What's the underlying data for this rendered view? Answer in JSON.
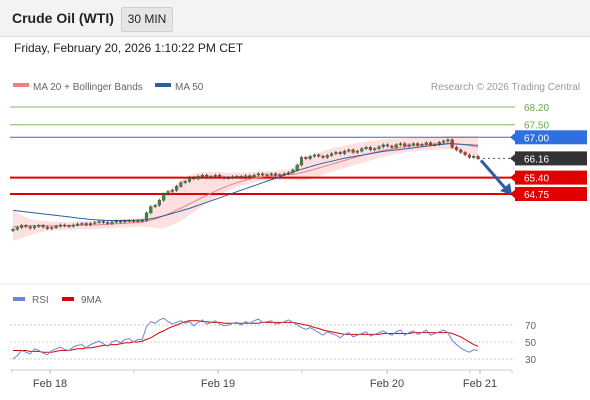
{
  "header": {
    "instrument": "Crude Oil (WTI)",
    "interval": "30 MIN",
    "timestamp": "Friday, February 20, 2026 1:10:22 PM CET"
  },
  "legend": {
    "ma20": "MA 20 + Bollinger Bands",
    "ma50": "MA 50",
    "copyright": "Research © 2026 Trading Central",
    "rsi": "RSI",
    "rsi_ma": "9MA"
  },
  "colors": {
    "candle_up": "#3a8a3a",
    "candle_down": "#c0392b",
    "ma20": "#f08080",
    "bollinger_fill": "#fde0e0",
    "ma50": "#2c5f9e",
    "resistance": "#2f6fe0",
    "support": "#e00000",
    "target": "#7fbf60",
    "current": "#333333",
    "rsi": "#6b85d6",
    "rsi_ma": "#e00000",
    "arrow": "#2c5f9e"
  },
  "chart_data": {
    "type": "candlestick",
    "price_axis": {
      "range": [
        63.3,
        68.65
      ]
    },
    "x_ticks": [
      "Feb 18",
      "Feb 19",
      "Feb 20",
      "Feb 21"
    ],
    "levels": [
      {
        "value": 68.2,
        "label": "68.20",
        "kind": "target"
      },
      {
        "value": 67.5,
        "label": "67.50",
        "kind": "target"
      },
      {
        "value": 67.0,
        "label": "67.00",
        "kind": "resistance"
      },
      {
        "value": 66.16,
        "label": "66.16",
        "kind": "current"
      },
      {
        "value": 65.4,
        "label": "65.40",
        "kind": "support"
      },
      {
        "value": 64.75,
        "label": "64.75",
        "kind": "support"
      }
    ],
    "close": [
      63.35,
      63.42,
      63.5,
      63.45,
      63.4,
      63.46,
      63.5,
      63.44,
      63.38,
      63.42,
      63.47,
      63.52,
      63.49,
      63.47,
      63.52,
      63.56,
      63.58,
      63.53,
      63.58,
      63.62,
      63.66,
      63.62,
      63.58,
      63.64,
      63.67,
      63.64,
      63.68,
      63.7,
      63.66,
      63.7,
      63.7,
      64.0,
      64.25,
      64.3,
      64.5,
      64.75,
      64.85,
      64.9,
      65.05,
      65.2,
      65.25,
      65.4,
      65.35,
      65.45,
      65.5,
      65.4,
      65.45,
      65.5,
      65.42,
      65.38,
      65.4,
      65.44,
      65.45,
      65.4,
      65.47,
      65.45,
      65.5,
      65.55,
      65.5,
      65.52,
      65.55,
      65.5,
      65.52,
      65.55,
      65.6,
      65.7,
      65.9,
      66.2,
      66.15,
      66.25,
      66.3,
      66.25,
      66.2,
      66.28,
      66.35,
      66.4,
      66.35,
      66.45,
      66.5,
      66.4,
      66.45,
      66.55,
      66.6,
      66.5,
      66.55,
      66.62,
      66.7,
      66.65,
      66.6,
      66.7,
      66.75,
      66.65,
      66.7,
      66.75,
      66.68,
      66.72,
      66.78,
      66.7,
      66.72,
      66.8,
      66.85,
      66.9,
      66.6,
      66.5,
      66.4,
      66.3,
      66.2,
      66.25,
      66.16
    ],
    "ma20": [
      63.45,
      63.47,
      63.48,
      63.49,
      63.5,
      63.5,
      63.5,
      63.5,
      63.49,
      63.49,
      63.49,
      63.49,
      63.49,
      63.49,
      63.5,
      63.5,
      63.51,
      63.51,
      63.52,
      63.52,
      63.53,
      63.54,
      63.55,
      63.56,
      63.57,
      63.58,
      63.59,
      63.6,
      63.61,
      63.62,
      63.63,
      63.67,
      63.72,
      63.76,
      63.82,
      63.89,
      63.96,
      64.03,
      64.11,
      64.19,
      64.27,
      64.36,
      64.44,
      64.53,
      64.62,
      64.7,
      64.78,
      64.86,
      64.94,
      65.01,
      65.08,
      65.14,
      65.2,
      65.25,
      65.3,
      65.34,
      65.38,
      65.41,
      65.43,
      65.45,
      65.47,
      65.49,
      65.5,
      65.51,
      65.52,
      65.53,
      65.56,
      65.6,
      65.64,
      65.68,
      65.73,
      65.78,
      65.83,
      65.88,
      65.93,
      65.98,
      66.03,
      66.08,
      66.13,
      66.18,
      66.23,
      66.28,
      66.32,
      66.36,
      66.4,
      66.44,
      66.48,
      66.51,
      66.54,
      66.57,
      66.6,
      66.62,
      66.64,
      66.66,
      66.68,
      66.69,
      66.71,
      66.72,
      66.73,
      66.74,
      66.75,
      66.76,
      66.75,
      66.74,
      66.72,
      66.7,
      66.67,
      66.64,
      66.61
    ],
    "bollinger_upper": [
      64.1,
      64.0,
      63.9,
      63.82,
      63.76,
      63.72,
      63.7,
      63.68,
      63.67,
      63.66,
      63.65,
      63.65,
      63.65,
      63.65,
      63.65,
      63.66,
      63.67,
      63.67,
      63.68,
      63.69,
      63.7,
      63.71,
      63.72,
      63.73,
      63.74,
      63.75,
      63.76,
      63.77,
      63.78,
      63.79,
      63.8,
      63.95,
      64.15,
      64.3,
      64.5,
      64.7,
      64.85,
      65.0,
      65.15,
      65.28,
      65.4,
      65.5,
      65.55,
      65.6,
      65.62,
      65.62,
      65.62,
      65.62,
      65.61,
      65.6,
      65.6,
      65.6,
      65.6,
      65.6,
      65.6,
      65.61,
      65.62,
      65.63,
      65.64,
      65.65,
      65.66,
      65.67,
      65.68,
      65.69,
      65.72,
      65.78,
      65.9,
      66.05,
      66.15,
      66.25,
      66.33,
      66.4,
      66.45,
      66.5,
      66.55,
      66.6,
      66.63,
      66.67,
      66.71,
      66.74,
      66.77,
      66.8,
      66.83,
      66.85,
      66.87,
      66.89,
      66.91,
      66.93,
      66.94,
      66.95,
      66.96,
      66.97,
      66.98,
      66.99,
      67.0,
      67.0,
      67.01,
      67.01,
      67.02,
      67.03,
      67.04,
      67.05,
      67.05,
      67.05,
      67.05,
      67.05,
      67.05,
      67.05,
      67.05
    ],
    "bollinger_lower": [
      62.9,
      62.95,
      63.0,
      63.06,
      63.12,
      63.18,
      63.22,
      63.26,
      63.28,
      63.3,
      63.31,
      63.32,
      63.33,
      63.34,
      63.34,
      63.35,
      63.35,
      63.36,
      63.36,
      63.37,
      63.37,
      63.38,
      63.38,
      63.39,
      63.4,
      63.41,
      63.42,
      63.43,
      63.44,
      63.45,
      63.46,
      63.45,
      63.42,
      63.4,
      63.38,
      63.4,
      63.45,
      63.52,
      63.6,
      63.7,
      63.8,
      63.92,
      64.03,
      64.15,
      64.27,
      64.38,
      64.5,
      64.6,
      64.7,
      64.8,
      64.88,
      64.95,
      65.02,
      65.08,
      65.13,
      65.17,
      65.21,
      65.24,
      65.26,
      65.28,
      65.29,
      65.3,
      65.31,
      65.32,
      65.33,
      65.32,
      65.3,
      65.28,
      65.3,
      65.34,
      65.4,
      65.46,
      65.52,
      65.58,
      65.63,
      65.68,
      65.73,
      65.78,
      65.83,
      65.88,
      65.93,
      65.98,
      66.03,
      66.08,
      66.13,
      66.18,
      66.22,
      66.26,
      66.3,
      66.34,
      66.37,
      66.4,
      66.42,
      66.44,
      66.46,
      66.48,
      66.49,
      66.5,
      66.51,
      66.52,
      66.53,
      66.54,
      66.5,
      66.45,
      66.4,
      66.36,
      66.32,
      66.28,
      66.25
    ],
    "ma50": [
      64.1,
      64.08,
      64.06,
      64.04,
      64.02,
      64.0,
      63.98,
      63.96,
      63.94,
      63.92,
      63.9,
      63.88,
      63.86,
      63.84,
      63.82,
      63.8,
      63.78,
      63.76,
      63.74,
      63.73,
      63.72,
      63.71,
      63.7,
      63.7,
      63.7,
      63.7,
      63.7,
      63.7,
      63.7,
      63.71,
      63.72,
      63.74,
      63.77,
      63.8,
      63.84,
      63.88,
      63.93,
      63.98,
      64.03,
      64.08,
      64.13,
      64.18,
      64.24,
      64.3,
      64.36,
      64.42,
      64.48,
      64.54,
      64.6,
      64.66,
      64.72,
      64.78,
      64.84,
      64.9,
      64.96,
      65.02,
      65.08,
      65.14,
      65.2,
      65.26,
      65.32,
      65.38,
      65.44,
      65.5,
      65.56,
      65.62,
      65.68,
      65.73,
      65.78,
      65.83,
      65.88,
      65.93,
      65.97,
      66.01,
      66.05,
      66.09,
      66.13,
      66.17,
      66.2,
      66.23,
      66.26,
      66.29,
      66.32,
      66.35,
      66.38,
      66.41,
      66.44,
      66.46,
      66.48,
      66.5,
      66.52,
      66.54,
      66.56,
      66.58,
      66.6,
      66.62,
      66.64,
      66.66,
      66.68,
      66.7,
      66.72,
      66.74,
      66.74,
      66.73,
      66.72,
      66.71,
      66.7,
      66.69,
      66.68
    ],
    "rsi": {
      "y_ticks": [
        70,
        50,
        30
      ],
      "range": [
        20,
        85
      ],
      "values": [
        30,
        34,
        40,
        38,
        36,
        42,
        40,
        37,
        35,
        40,
        42,
        44,
        41,
        40,
        44,
        46,
        47,
        43,
        47,
        49,
        51,
        48,
        45,
        50,
        52,
        49,
        53,
        54,
        50,
        53,
        53,
        68,
        74,
        72,
        76,
        78,
        74,
        71,
        73,
        75,
        72,
        74,
        69,
        73,
        76,
        71,
        73,
        75,
        71,
        69,
        70,
        72,
        73,
        70,
        74,
        72,
        75,
        77,
        73,
        74,
        75,
        71,
        72,
        74,
        76,
        73,
        70,
        67,
        65,
        67,
        64,
        61,
        58,
        62,
        60,
        58,
        55,
        59,
        61,
        56,
        58,
        60,
        62,
        57,
        59,
        61,
        63,
        60,
        58,
        62,
        64,
        58,
        61,
        63,
        59,
        61,
        64,
        58,
        60,
        62,
        64,
        61,
        52,
        47,
        43,
        40,
        38,
        41,
        40
      ],
      "ma9": [
        40,
        40,
        40,
        40,
        39,
        39,
        39,
        38,
        38,
        38,
        39,
        40,
        40,
        40,
        41,
        42,
        42,
        43,
        43,
        44,
        45,
        46,
        46,
        47,
        47,
        48,
        49,
        49,
        50,
        50,
        51,
        53,
        55,
        58,
        61,
        63,
        66,
        68,
        70,
        72,
        74,
        75,
        75,
        75,
        74,
        74,
        73,
        73,
        73,
        72,
        72,
        72,
        72,
        72,
        72,
        72,
        72,
        72,
        73,
        73,
        73,
        73,
        73,
        73,
        73,
        73,
        72,
        71,
        70,
        69,
        67,
        66,
        64,
        63,
        62,
        61,
        60,
        59,
        59,
        59,
        59,
        59,
        59,
        59,
        59,
        59,
        60,
        60,
        60,
        60,
        60,
        60,
        60,
        61,
        61,
        61,
        61,
        61,
        61,
        61,
        61,
        61,
        60,
        58,
        56,
        53,
        50,
        47,
        45
      ]
    }
  }
}
